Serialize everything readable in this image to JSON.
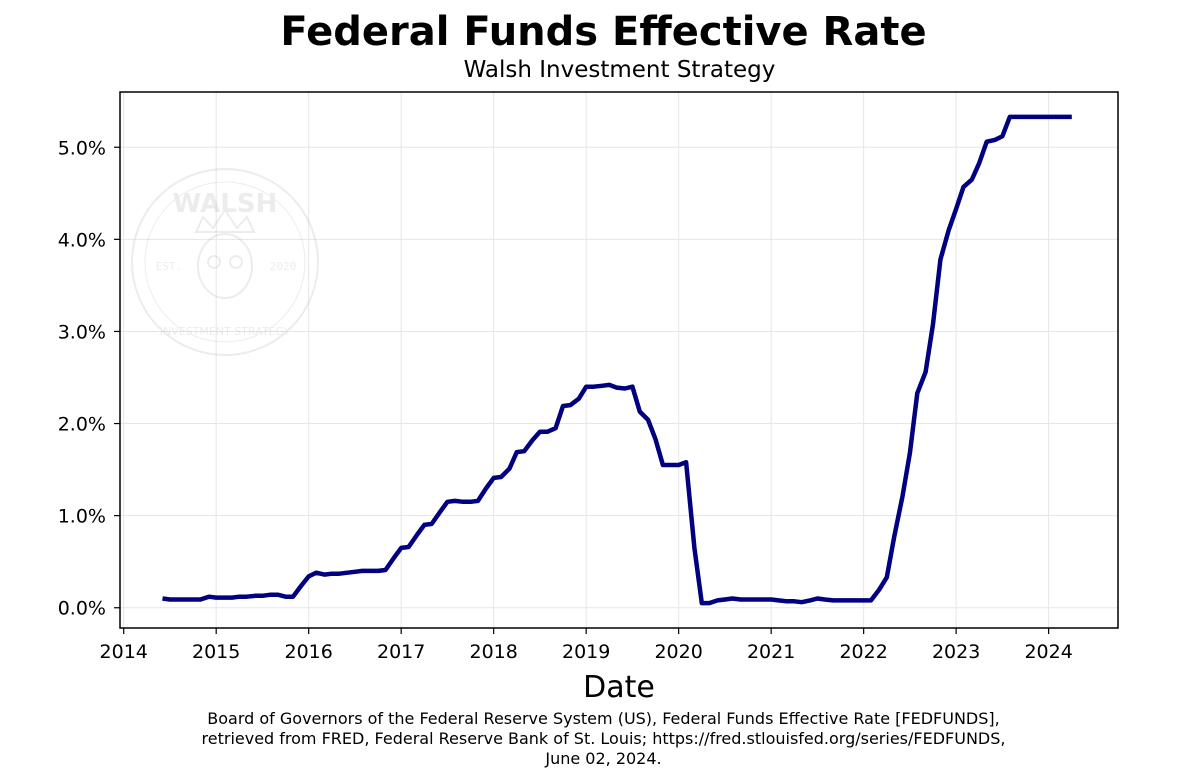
{
  "title": "Federal Funds Effective Rate",
  "subtitle": "Walsh Investment Strategy",
  "xlabel": "Date",
  "watermark": {
    "name": "WALSH",
    "est": "EST.",
    "year": "2020",
    "tagline": "INVESTMENT STRATEGY"
  },
  "source": {
    "line1": "Board of Governors of the Federal Reserve System (US), Federal Funds Effective Rate [FEDFUNDS],",
    "line2": "retrieved from FRED, Federal Reserve Bank of St. Louis; https://fred.stlouisfed.org/series/FEDFUNDS,",
    "line3": "June 02, 2024."
  },
  "colors": {
    "line": "#000080",
    "grid": "#e6e6e6",
    "axis": "#000000"
  },
  "chart_data": {
    "type": "line",
    "title": "Federal Funds Effective Rate",
    "subtitle": "Walsh Investment Strategy",
    "xlabel": "Date",
    "ylabel": "",
    "xlim": [
      2013.96,
      2024.75
    ],
    "ylim": [
      -0.22,
      5.6
    ],
    "x_ticks": [
      2014,
      2015,
      2016,
      2017,
      2018,
      2019,
      2020,
      2021,
      2022,
      2023,
      2024
    ],
    "x_tick_labels": [
      "2014",
      "2015",
      "2016",
      "2017",
      "2018",
      "2019",
      "2020",
      "2021",
      "2022",
      "2023",
      "2024"
    ],
    "y_ticks": [
      0,
      1,
      2,
      3,
      4,
      5
    ],
    "y_tick_labels": [
      "0.0%",
      "1.0%",
      "2.0%",
      "3.0%",
      "4.0%",
      "5.0%"
    ],
    "grid": true,
    "series": [
      {
        "x": [
          2014.42,
          2014.5,
          2014.58,
          2014.67,
          2014.75,
          2014.83,
          2014.92,
          2015.0,
          2015.08,
          2015.17,
          2015.25,
          2015.33,
          2015.42,
          2015.5,
          2015.58,
          2015.67,
          2015.75,
          2015.83,
          2015.92,
          2016.0,
          2016.08,
          2016.17,
          2016.25,
          2016.33,
          2016.42,
          2016.5,
          2016.58,
          2016.67,
          2016.75,
          2016.83,
          2016.92,
          2017.0,
          2017.08,
          2017.17,
          2017.25,
          2017.33,
          2017.42,
          2017.5,
          2017.58,
          2017.67,
          2017.75,
          2017.83,
          2017.92,
          2018.0,
          2018.08,
          2018.17,
          2018.25,
          2018.33,
          2018.42,
          2018.5,
          2018.58,
          2018.67,
          2018.75,
          2018.83,
          2018.92,
          2019.0,
          2019.08,
          2019.17,
          2019.25,
          2019.33,
          2019.42,
          2019.5,
          2019.58,
          2019.67,
          2019.75,
          2019.83,
          2019.92,
          2020.0,
          2020.08,
          2020.17,
          2020.25,
          2020.33,
          2020.42,
          2020.5,
          2020.58,
          2020.67,
          2020.75,
          2020.83,
          2020.92,
          2021.0,
          2021.08,
          2021.17,
          2021.25,
          2021.33,
          2021.42,
          2021.5,
          2021.58,
          2021.67,
          2021.75,
          2021.83,
          2021.92,
          2022.0,
          2022.08,
          2022.17,
          2022.25,
          2022.33,
          2022.42,
          2022.5,
          2022.58,
          2022.67,
          2022.75,
          2022.83,
          2022.92,
          2023.0,
          2023.08,
          2023.17,
          2023.25,
          2023.33,
          2023.42,
          2023.5,
          2023.58,
          2023.67,
          2023.75,
          2023.83,
          2023.92,
          2024.0,
          2024.08,
          2024.17,
          2024.25
        ],
        "values": [
          0.1,
          0.09,
          0.09,
          0.09,
          0.09,
          0.09,
          0.12,
          0.11,
          0.11,
          0.11,
          0.12,
          0.12,
          0.13,
          0.13,
          0.14,
          0.14,
          0.12,
          0.12,
          0.24,
          0.34,
          0.38,
          0.36,
          0.37,
          0.37,
          0.38,
          0.39,
          0.4,
          0.4,
          0.4,
          0.41,
          0.54,
          0.65,
          0.66,
          0.79,
          0.9,
          0.91,
          1.04,
          1.15,
          1.16,
          1.15,
          1.15,
          1.16,
          1.3,
          1.41,
          1.42,
          1.51,
          1.69,
          1.7,
          1.82,
          1.91,
          1.91,
          1.95,
          2.19,
          2.2,
          2.27,
          2.4,
          2.4,
          2.41,
          2.42,
          2.39,
          2.38,
          2.4,
          2.13,
          2.04,
          1.83,
          1.55,
          1.55,
          1.55,
          1.58,
          0.65,
          0.05,
          0.05,
          0.08,
          0.09,
          0.1,
          0.09,
          0.09,
          0.09,
          0.09,
          0.09,
          0.08,
          0.07,
          0.07,
          0.06,
          0.08,
          0.1,
          0.09,
          0.08,
          0.08,
          0.08,
          0.08,
          0.08,
          0.08,
          0.2,
          0.33,
          0.77,
          1.21,
          1.68,
          2.33,
          2.56,
          3.08,
          3.78,
          4.1,
          4.33,
          4.57,
          4.65,
          4.83,
          5.06,
          5.08,
          5.12,
          5.33,
          5.33,
          5.33,
          5.33,
          5.33,
          5.33,
          5.33,
          5.33,
          5.33
        ]
      }
    ]
  }
}
